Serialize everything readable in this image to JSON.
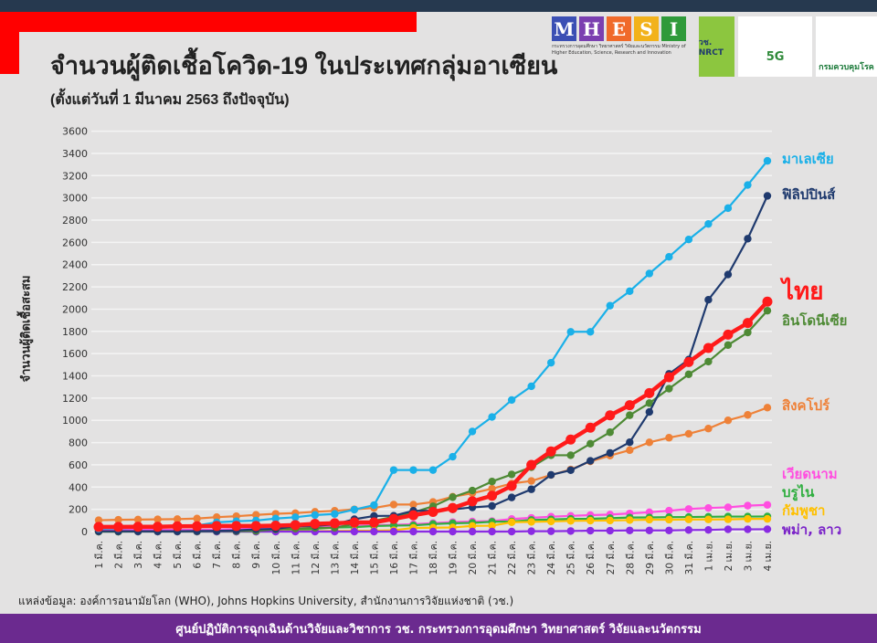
{
  "header": {
    "title": "จำนวนผู้ติดเชื้อโควิด-19 ในประเทศกลุ่มอาเซียน",
    "subtitle": "(ตั้งแต่วันที่ 1 มีนาคม 2563 ถึงปัจจุบัน)",
    "logos": {
      "mhesi_letters": [
        "M",
        "H",
        "E",
        "S",
        "I"
      ],
      "mhesi_colors": [
        "#3b4fb4",
        "#7b3fb0",
        "#f06a2a",
        "#f2b21b",
        "#2f9a3a"
      ],
      "mhesi_caption": "กระทรวงการอุดมศึกษา วิทยาศาสตร์ วิจัยและนวัตกรรม Ministry of Higher Education, Science, Research and Innovation",
      "nrct": "วช. NRCT",
      "fiveg": "5G",
      "ddc": "กรมควบคุมโรค"
    }
  },
  "chart_data": {
    "type": "line",
    "title": "จำนวนผู้ติดเชื้อโควิด-19 ในประเทศกลุ่มอาเซียน",
    "ylabel": "จำนวนผู้ติดเชื้อสะสม",
    "xlabel": "",
    "ylim": [
      0,
      3600
    ],
    "yticks": [
      0,
      200,
      400,
      600,
      800,
      1000,
      1200,
      1400,
      1600,
      1800,
      2000,
      2200,
      2400,
      2600,
      2800,
      3000,
      3200,
      3400,
      3600
    ],
    "grid": true,
    "legend": "right (inline labels)",
    "categories": [
      "1 มี.ค.",
      "2 มี.ค.",
      "3 มี.ค.",
      "4 มี.ค.",
      "5 มี.ค.",
      "6 มี.ค.",
      "7 มี.ค.",
      "8 มี.ค.",
      "9 มี.ค.",
      "10 มี.ค.",
      "11 มี.ค.",
      "12 มี.ค.",
      "13 มี.ค.",
      "14 มี.ค.",
      "15 มี.ค.",
      "16 มี.ค.",
      "17 มี.ค.",
      "18 มี.ค.",
      "19 มี.ค.",
      "20 มี.ค.",
      "21 มี.ค.",
      "22 มี.ค.",
      "23 มี.ค.",
      "24 มี.ค.",
      "25 มี.ค.",
      "26 มี.ค.",
      "27 มี.ค.",
      "28 มี.ค.",
      "29 มี.ค.",
      "30 มี.ค.",
      "31 มี.ค.",
      "1 เม.ย.",
      "2 เม.ย.",
      "3 เม.ย.",
      "4 เม.ย."
    ],
    "series": [
      {
        "name": "สิงคโปร์",
        "color": "#ee8138",
        "label_y": 1130,
        "values": [
          102,
          106,
          108,
          110,
          112,
          117,
          130,
          138,
          150,
          160,
          166,
          178,
          187,
          200,
          212,
          243,
          243,
          266,
          313,
          345,
          385,
          432,
          455,
          509,
          558,
          631,
          683,
          732,
          802,
          844,
          879,
          926,
          1000,
          1049,
          1114
        ]
      },
      {
        "name": "เวียดนาม",
        "color": "#ff4fe0",
        "label_y": 520,
        "values": [
          16,
          16,
          16,
          16,
          16,
          16,
          18,
          21,
          30,
          31,
          39,
          44,
          47,
          53,
          56,
          61,
          66,
          76,
          85,
          91,
          94,
          113,
          123,
          134,
          141,
          148,
          153,
          163,
          174,
          188,
          203,
          212,
          218,
          233,
          240
        ]
      },
      {
        "name": "บรูไน",
        "color": "#2fae3f",
        "label_y": 350,
        "values": [
          0,
          0,
          0,
          0,
          0,
          0,
          0,
          0,
          0,
          1,
          11,
          25,
          37,
          40,
          50,
          54,
          56,
          68,
          75,
          78,
          88,
          91,
          104,
          109,
          114,
          115,
          120,
          126,
          127,
          130,
          131,
          133,
          135,
          135,
          136
        ]
      },
      {
        "name": "กัมพูชา",
        "color": "#ffc000",
        "label_y": 190,
        "values": [
          1,
          1,
          1,
          1,
          1,
          1,
          2,
          2,
          2,
          2,
          3,
          3,
          5,
          7,
          7,
          12,
          33,
          35,
          37,
          51,
          53,
          84,
          87,
          91,
          96,
          98,
          99,
          103,
          107,
          107,
          109,
          109,
          110,
          114,
          114
        ]
      },
      {
        "name": "พม่า, ลาว",
        "color": "#8a2be2",
        "label_y": 20,
        "values": [
          0,
          0,
          0,
          0,
          0,
          0,
          0,
          0,
          0,
          0,
          0,
          0,
          0,
          0,
          0,
          0,
          0,
          0,
          0,
          0,
          0,
          0,
          3,
          3,
          5,
          8,
          8,
          10,
          10,
          10,
          14,
          15,
          20,
          20,
          21
        ]
      },
      {
        "name": "อินโดนีเซีย",
        "color": "#4e8a35",
        "label_y": 1900,
        "values": [
          0,
          0,
          2,
          2,
          2,
          2,
          4,
          4,
          6,
          19,
          27,
          34,
          34,
          69,
          96,
          134,
          172,
          227,
          309,
          369,
          450,
          514,
          579,
          686,
          686,
          790,
          893,
          1046,
          1155,
          1285,
          1414,
          1528,
          1677,
          1790,
          1986
        ]
      },
      {
        "name": "ฟิลิปปินส์",
        "color": "#1f3a6e",
        "label_y": 3030,
        "values": [
          3,
          3,
          3,
          3,
          3,
          5,
          6,
          10,
          20,
          24,
          49,
          52,
          64,
          111,
          140,
          142,
          187,
          187,
          200,
          217,
          230,
          307,
          380,
          510,
          552,
          636,
          707,
          803,
          1075,
          1418,
          1546,
          2084,
          2311,
          2633,
          3018
        ]
      },
      {
        "name": "มาเลเซีย",
        "color": "#1ab0e8",
        "label_y": 3350,
        "values": [
          25,
          29,
          36,
          50,
          50,
          55,
          83,
          93,
          99,
          117,
          129,
          149,
          158,
          197,
          238,
          553,
          553,
          553,
          673,
          900,
          1030,
          1183,
          1306,
          1518,
          1796,
          1796,
          2031,
          2161,
          2320,
          2470,
          2626,
          2766,
          2908,
          3116,
          3333
        ]
      },
      {
        "name": "ไทย",
        "color": "#ff1a1a",
        "label_y": 2160,
        "values": [
          42,
          42,
          43,
          43,
          47,
          48,
          50,
          50,
          50,
          53,
          59,
          70,
          75,
          82,
          82,
          114,
          147,
          177,
          212,
          272,
          322,
          411,
          599,
          721,
          827,
          934,
          1045,
          1136,
          1245,
          1388,
          1524,
          1651,
          1771,
          1875,
          2067
        ]
      }
    ]
  },
  "source": "แหล่งข้อมูล: องค์การอนามัยโลก (WHO), Johns Hopkins University, สำนักงานการวิจัยแห่งชาติ (วช.)",
  "footer": "ศูนย์ปฏิบัติการฉุกเฉินด้านวิจัยและวิชาการ   วช.   กระทรวงการอุดมศึกษา วิทยาศาสตร์ วิจัยและนวัตกรรม"
}
